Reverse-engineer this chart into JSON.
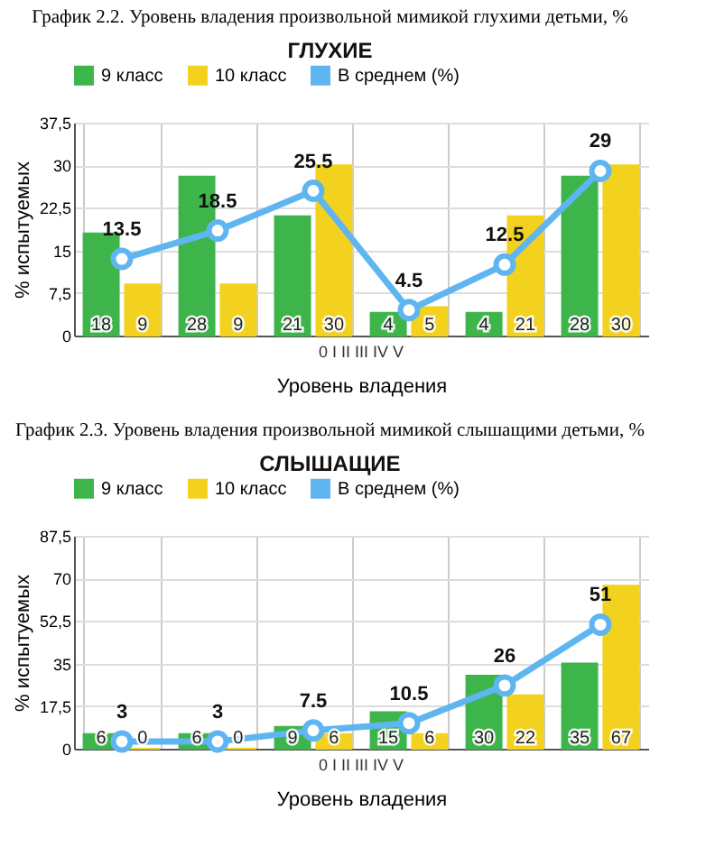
{
  "chart_data": [
    {
      "type": "bar",
      "title": "График 2.2. Уровень владения произвольной мимикой глухими детьми, %",
      "subtitle": "ГЛУХИЕ",
      "xlabel": "Уровень владения",
      "ylabel": "% испытуемых",
      "annotations": [
        "0 I II III IV V"
      ],
      "categories": [
        null,
        null,
        null,
        null,
        null,
        null
      ],
      "series": [
        {
          "name": "9 класс",
          "color": "#3db54a",
          "values": [
            18,
            28,
            21,
            4,
            4,
            28
          ]
        },
        {
          "name": "10 класс",
          "color": "#f2d21f",
          "values": [
            9,
            9,
            30,
            5,
            21,
            30
          ]
        },
        {
          "name": "В среднем (%)",
          "type": "line",
          "color": "#5fb5f0",
          "values": [
            13.5,
            18.5,
            25.5,
            4.5,
            12.5,
            29
          ]
        }
      ],
      "ylim": [
        0,
        37.5
      ],
      "yticks": [
        0,
        {
          "value": 7.5,
          "label": "7,5"
        },
        15,
        {
          "value": 22.5,
          "label": "22,5"
        },
        30,
        {
          "value": 37.5,
          "label": "37,5"
        }
      ],
      "tick_labels": "y",
      "grid": true,
      "legend": "top",
      "data_labels": true,
      "marker": "circle",
      "line_style": "solid"
    },
    {
      "type": "bar",
      "title": "График 2.3. Уровень владения произвольной мимикой слышащими детьми, %",
      "subtitle": "СЛЫШАЩИЕ",
      "xlabel": "Уровень владения",
      "ylabel": "% испытуемых",
      "annotations": [
        "0 I II III IV V"
      ],
      "categories": [
        null,
        null,
        null,
        null,
        null,
        null
      ],
      "series": [
        {
          "name": "9 класс",
          "color": "#3db54a",
          "values": [
            6,
            6,
            9,
            15,
            30,
            35
          ]
        },
        {
          "name": "10 класс",
          "color": "#f2d21f",
          "values": [
            0,
            0,
            6,
            6,
            22,
            67
          ]
        },
        {
          "name": "В среднем (%)",
          "type": "line",
          "color": "#5fb5f0",
          "values": [
            3,
            3,
            7.5,
            10.5,
            26,
            51
          ]
        }
      ],
      "ylim": [
        0,
        87.5
      ],
      "yticks": [
        0,
        {
          "value": 17.5,
          "label": "17,5"
        },
        35,
        {
          "value": 52.5,
          "label": "52,5"
        },
        70,
        {
          "value": 87.5,
          "label": "87,5"
        }
      ],
      "tick_labels": "y",
      "grid": true,
      "legend": "top",
      "data_labels": true,
      "marker": "circle",
      "line_style": "solid"
    }
  ]
}
